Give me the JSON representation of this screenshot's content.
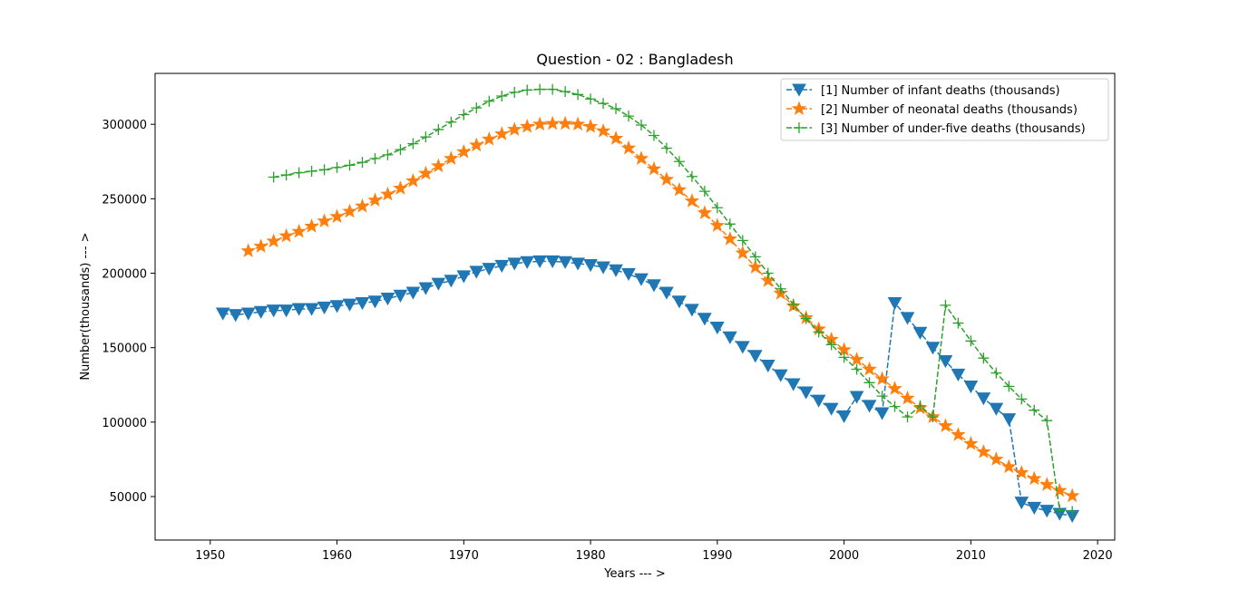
{
  "chart_data": {
    "type": "line",
    "title": "Question - 02 : Bangladesh",
    "xlabel": "Years --- >",
    "ylabel": "Number(thousands) --- >",
    "xlim": [
      1945.65,
      2021.35
    ],
    "ylim": [
      20800,
      334200
    ],
    "xticks": [
      1950,
      1960,
      1970,
      1980,
      1990,
      2000,
      2010,
      2020
    ],
    "yticks": [
      50000,
      100000,
      150000,
      200000,
      250000,
      300000
    ],
    "legend_position": "top-right",
    "series": [
      {
        "name": "[1] Number of infant deaths (thousands)",
        "color": "#1f77b4",
        "marker": "triangle-down",
        "x": [
          1951,
          1952,
          1953,
          1954,
          1955,
          1956,
          1957,
          1958,
          1959,
          1960,
          1961,
          1962,
          1963,
          1964,
          1965,
          1966,
          1967,
          1968,
          1969,
          1970,
          1971,
          1972,
          1973,
          1974,
          1975,
          1976,
          1977,
          1978,
          1979,
          1980,
          1981,
          1982,
          1983,
          1984,
          1985,
          1986,
          1987,
          1988,
          1989,
          1990,
          1991,
          1992,
          1993,
          1994,
          1995,
          1996,
          1997,
          1998,
          1999,
          2000,
          2001,
          2002,
          2003,
          2004,
          2005,
          2006,
          2007,
          2008,
          2009,
          2010,
          2011,
          2012,
          2013,
          2014,
          2015,
          2016,
          2017,
          2018
        ],
        "values": [
          173000,
          172000,
          173000,
          174000,
          175000,
          175000,
          176000,
          176000,
          177000,
          178000,
          179000,
          180000,
          181000,
          183000,
          185000,
          187000,
          190000,
          193000,
          195000,
          198000,
          201000,
          203000,
          205000,
          206500,
          207500,
          208000,
          208000,
          207500,
          206500,
          205500,
          204000,
          202000,
          199500,
          196000,
          192000,
          187000,
          181000,
          175500,
          169500,
          163500,
          157000,
          150500,
          144500,
          138000,
          131500,
          125500,
          120000,
          114500,
          109000,
          104000,
          117000,
          111000,
          106000,
          180000,
          170000,
          160000,
          150000,
          141000,
          132000,
          124000,
          116000,
          109000,
          102000,
          46000,
          42500,
          40500,
          38500,
          37000
        ]
      },
      {
        "name": "[2] Number of neonatal deaths (thousands)",
        "color": "#ff7f0e",
        "marker": "star",
        "x": [
          1953,
          1954,
          1955,
          1956,
          1957,
          1958,
          1959,
          1960,
          1961,
          1962,
          1963,
          1964,
          1965,
          1966,
          1967,
          1968,
          1969,
          1970,
          1971,
          1972,
          1973,
          1974,
          1975,
          1976,
          1977,
          1978,
          1979,
          1980,
          1981,
          1982,
          1983,
          1984,
          1985,
          1986,
          1987,
          1988,
          1989,
          1990,
          1991,
          1992,
          1993,
          1994,
          1995,
          1996,
          1997,
          1998,
          1999,
          2000,
          2001,
          2002,
          2003,
          2004,
          2005,
          2006,
          2007,
          2008,
          2009,
          2010,
          2011,
          2012,
          2013,
          2014,
          2015,
          2016,
          2017,
          2018
        ],
        "values": [
          215000,
          218000,
          221500,
          225000,
          228000,
          231500,
          235000,
          238000,
          241500,
          245000,
          249000,
          253000,
          257000,
          262000,
          267000,
          272000,
          277000,
          281500,
          286000,
          290000,
          293500,
          296500,
          298500,
          300000,
          300500,
          300500,
          300000,
          298500,
          295500,
          290500,
          284000,
          277000,
          270000,
          263000,
          256000,
          248500,
          240500,
          232000,
          223000,
          213500,
          204000,
          195000,
          186500,
          178000,
          170000,
          162500,
          155500,
          148500,
          142000,
          135500,
          129000,
          122500,
          116000,
          109500,
          103500,
          97500,
          91500,
          85500,
          80000,
          75000,
          70000,
          66000,
          62000,
          58000,
          54000,
          50500
        ]
      },
      {
        "name": "[3] Number of under-five deaths (thousands)",
        "color": "#2ca02c",
        "marker": "plus",
        "x": [
          1955,
          1956,
          1957,
          1958,
          1959,
          1960,
          1961,
          1962,
          1963,
          1964,
          1965,
          1966,
          1967,
          1968,
          1969,
          1970,
          1971,
          1972,
          1973,
          1974,
          1975,
          1976,
          1977,
          1978,
          1979,
          1980,
          1981,
          1982,
          1983,
          1984,
          1985,
          1986,
          1987,
          1988,
          1989,
          1990,
          1991,
          1992,
          1993,
          1994,
          1995,
          1996,
          1997,
          1998,
          1999,
          2000,
          2001,
          2002,
          2003,
          2004,
          2005,
          2006,
          2007,
          2008,
          2009,
          2010,
          2011,
          2012,
          2013,
          2014,
          2015,
          2016,
          2017,
          2018
        ],
        "values": [
          264500,
          266000,
          267500,
          268500,
          269500,
          271000,
          272500,
          274500,
          277000,
          279500,
          283000,
          287000,
          291500,
          296500,
          301500,
          306500,
          311000,
          315500,
          319000,
          321500,
          323000,
          323500,
          323500,
          322000,
          320000,
          317000,
          314000,
          310500,
          305500,
          299500,
          292500,
          284000,
          275000,
          265000,
          255000,
          244000,
          233000,
          222000,
          211000,
          200000,
          189500,
          179000,
          169500,
          160500,
          152000,
          143500,
          135500,
          126500,
          117500,
          110500,
          103500,
          111000,
          103500,
          178500,
          166500,
          154500,
          143000,
          133000,
          124000,
          115500,
          108000,
          101000,
          41000,
          40000
        ]
      }
    ]
  }
}
